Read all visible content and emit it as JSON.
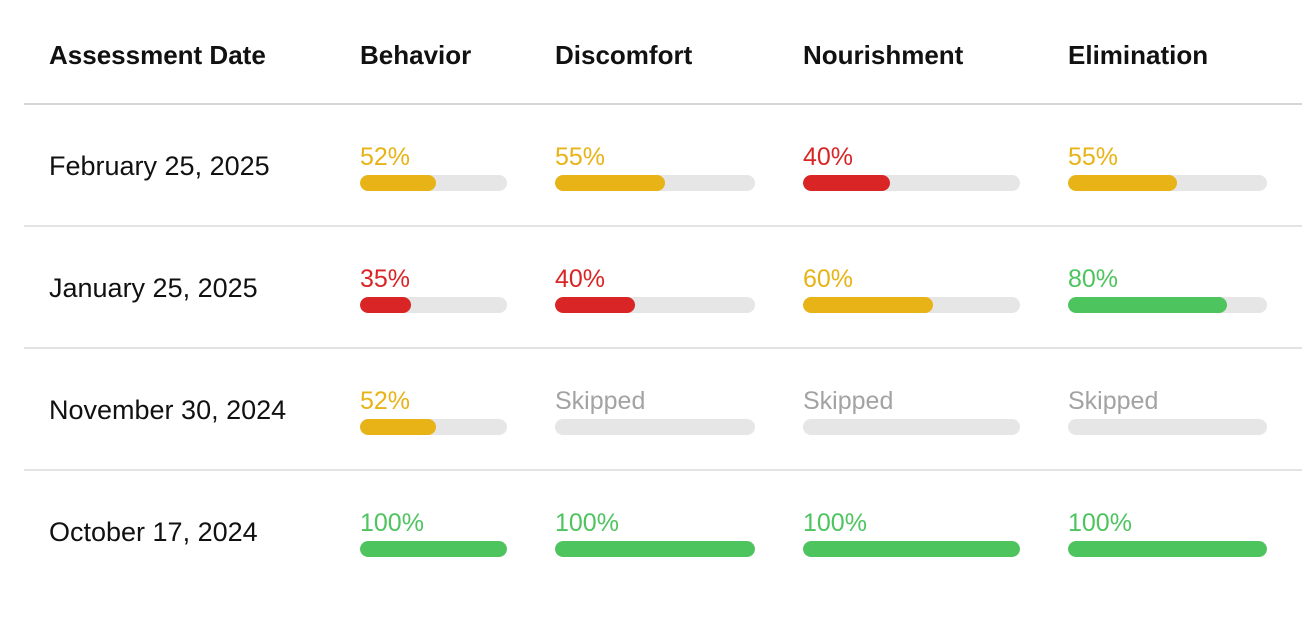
{
  "colors": {
    "red": "#d92525",
    "yellow": "#e8b316",
    "green": "#4ec45f",
    "skipped": "#a3a3a3",
    "track": "#e6e6e6"
  },
  "headers": {
    "date": "Assessment Date",
    "behavior": "Behavior",
    "discomfort": "Discomfort",
    "nourishment": "Nourishment",
    "elimination": "Elimination"
  },
  "rows": [
    {
      "date": "February 25, 2025",
      "behavior": {
        "label": "52%",
        "value": 52,
        "status": "yellow"
      },
      "discomfort": {
        "label": "55%",
        "value": 55,
        "status": "yellow"
      },
      "nourishment": {
        "label": "40%",
        "value": 40,
        "status": "red"
      },
      "elimination": {
        "label": "55%",
        "value": 55,
        "status": "yellow"
      }
    },
    {
      "date": "January 25, 2025",
      "behavior": {
        "label": "35%",
        "value": 35,
        "status": "red"
      },
      "discomfort": {
        "label": "40%",
        "value": 40,
        "status": "red"
      },
      "nourishment": {
        "label": "60%",
        "value": 60,
        "status": "yellow"
      },
      "elimination": {
        "label": "80%",
        "value": 80,
        "status": "green"
      }
    },
    {
      "date": "November 30, 2024",
      "behavior": {
        "label": "52%",
        "value": 52,
        "status": "yellow"
      },
      "discomfort": {
        "label": "Skipped",
        "value": 0,
        "status": "skipped"
      },
      "nourishment": {
        "label": "Skipped",
        "value": 0,
        "status": "skipped"
      },
      "elimination": {
        "label": "Skipped",
        "value": 0,
        "status": "skipped"
      }
    },
    {
      "date": "October 17, 2024",
      "behavior": {
        "label": "100%",
        "value": 100,
        "status": "green"
      },
      "discomfort": {
        "label": "100%",
        "value": 100,
        "status": "green"
      },
      "nourishment": {
        "label": "100%",
        "value": 100,
        "status": "green"
      },
      "elimination": {
        "label": "100%",
        "value": 100,
        "status": "green"
      }
    }
  ]
}
